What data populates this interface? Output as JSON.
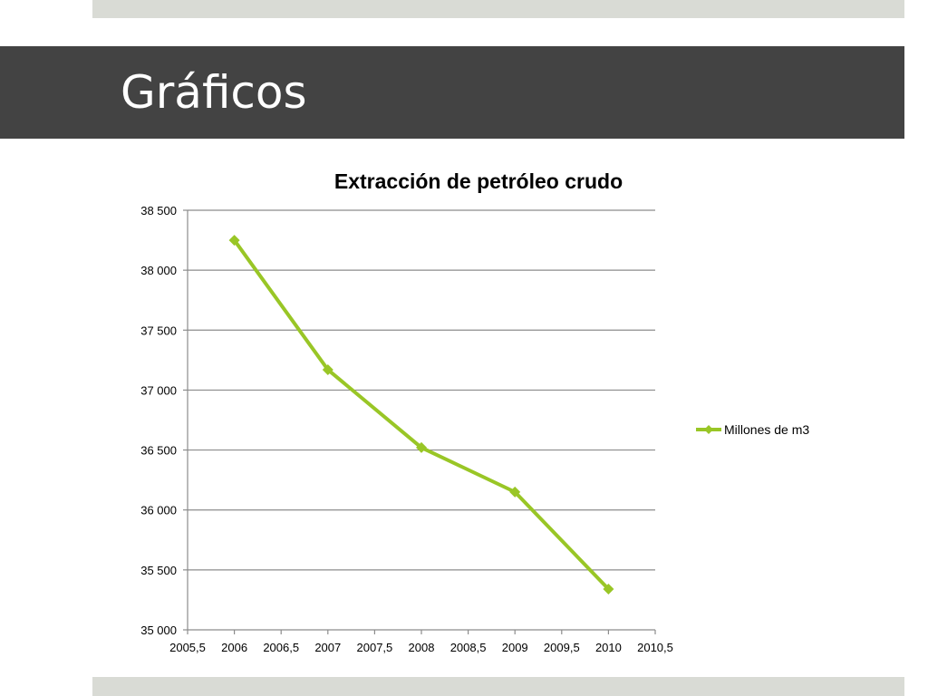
{
  "slide": {
    "title": "Gráficos"
  },
  "colors": {
    "title_band": "#434343",
    "accent_bars": "#d9dbd5",
    "series": "#99c626",
    "grid": "#8c8c8c"
  },
  "chart_data": {
    "type": "scatter",
    "title": "Extracción de petróleo crudo",
    "xlabel": "",
    "ylabel": "",
    "xlim": [
      2005.5,
      2010.5
    ],
    "ylim": [
      35000,
      38500
    ],
    "x_ticks": [
      2005.5,
      2006,
      2006.5,
      2007,
      2007.5,
      2008,
      2008.5,
      2009,
      2009.5,
      2010,
      2010.5
    ],
    "x_tick_labels": [
      "2005,5",
      "2006",
      "2006,5",
      "2007",
      "2007,5",
      "2008",
      "2008,5",
      "2009",
      "2009,5",
      "2010",
      "2010,5"
    ],
    "y_ticks": [
      35000,
      35500,
      36000,
      36500,
      37000,
      37500,
      38000,
      38500
    ],
    "y_tick_labels": [
      "35 000",
      "35 500",
      "36 000",
      "36 500",
      "37 000",
      "37 500",
      "38 000",
      "38 500"
    ],
    "grid": true,
    "legend_position": "right",
    "marker": "diamond",
    "series": [
      {
        "name": "Millones de m3",
        "x": [
          2006,
          2007,
          2008,
          2009,
          2010
        ],
        "y": [
          38250,
          37170,
          36520,
          36150,
          35340
        ]
      }
    ]
  }
}
